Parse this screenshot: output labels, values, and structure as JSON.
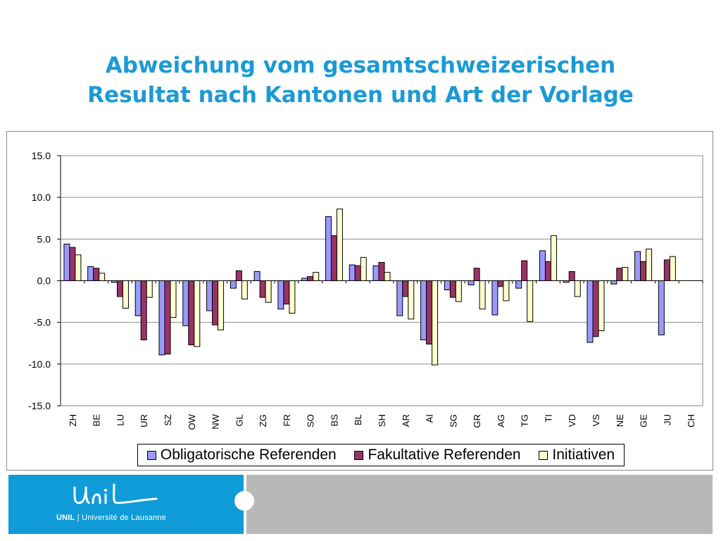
{
  "slide": {
    "title_line1": "Abweichung vom gesamtschweizerischen",
    "title_line2": "Resultat nach Kantonen und Art der Vorlage"
  },
  "footer": {
    "logo_script": "Unil",
    "logo_bold": "UNIL",
    "logo_separator": "|",
    "logo_name": "Université de Lausanne",
    "left_color": "#0f9cd8",
    "right_color": "#b8b8b8"
  },
  "chart_data": {
    "type": "bar",
    "title": "",
    "xlabel": "",
    "ylabel": "",
    "ylim": [
      -15,
      15
    ],
    "y_ticks": [
      "15.0",
      "10.0",
      "5.0",
      "0.0",
      "-5.0",
      "-10.0",
      "-15.0"
    ],
    "grid": true,
    "legend_position": "bottom",
    "categories": [
      "ZH",
      "BE",
      "LU",
      "UR",
      "SZ",
      "OW",
      "NW",
      "GL",
      "ZG",
      "FR",
      "SO",
      "BS",
      "BL",
      "SH",
      "AR",
      "AI",
      "SG",
      "GR",
      "AG",
      "TG",
      "TI",
      "VD",
      "VS",
      "NE",
      "GE",
      "JU",
      "CH"
    ],
    "series": [
      {
        "name": "Obligatorische Referenden",
        "color": "#9999ff",
        "values": [
          4.4,
          1.7,
          -0.2,
          -4.2,
          -8.9,
          -5.4,
          -3.6,
          -0.9,
          1.1,
          -3.4,
          0.3,
          7.7,
          1.9,
          1.8,
          -4.2,
          -7.1,
          -1.1,
          -0.5,
          -4.1,
          -0.9,
          3.6,
          -0.2,
          -7.4,
          -0.4,
          3.5,
          -6.5,
          0.0
        ]
      },
      {
        "name": "Fakultative Referenden",
        "color": "#993366",
        "values": [
          4.0,
          1.5,
          -1.9,
          -7.1,
          -8.8,
          -7.7,
          -5.3,
          1.2,
          -2.0,
          -2.8,
          0.5,
          5.4,
          1.8,
          2.2,
          -1.9,
          -7.6,
          -2.0,
          1.5,
          -0.7,
          2.4,
          2.3,
          1.1,
          -6.7,
          1.5,
          2.3,
          2.5,
          0.0
        ]
      },
      {
        "name": "Initiativen",
        "color": "#ffffcc",
        "values": [
          3.1,
          0.9,
          -3.3,
          -2.0,
          -4.4,
          -7.9,
          -5.9,
          -2.2,
          -2.6,
          -3.9,
          1.0,
          8.6,
          2.8,
          1.0,
          -4.6,
          -10.1,
          -2.5,
          -3.4,
          -2.4,
          -4.9,
          5.4,
          -1.9,
          -6.0,
          1.6,
          3.8,
          2.9,
          0.0
        ]
      }
    ]
  }
}
